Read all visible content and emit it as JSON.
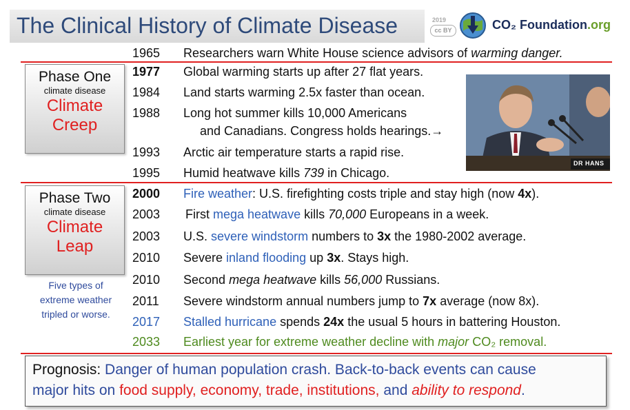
{
  "header": {
    "title": "The Clinical History of Climate Disease",
    "cc_year": "2019",
    "cc_badge": "cc BY",
    "brand_co2": "CO₂ Foundation",
    "brand_org": ".org"
  },
  "phases": [
    {
      "title": "Phase One",
      "subtitle": "climate disease",
      "name_1": "Climate",
      "name_2": "Creep"
    },
    {
      "title": "Phase Two",
      "subtitle": "climate disease",
      "name_1": "Climate",
      "name_2": "Leap"
    }
  ],
  "note": {
    "line_1": "Five types of",
    "line_2": "extreme weather",
    "line_3": "tripled or worse."
  },
  "timeline": {
    "r1965": {
      "year": "1965",
      "t1": "Researchers warn White House science advisors of ",
      "t2": "warming danger."
    },
    "r1977": {
      "year": "1977",
      "t1": "Global warming starts up after 27 flat years."
    },
    "r1984": {
      "year": "1984",
      "t1": "Land starts warming 2.5x faster than ocean."
    },
    "r1988": {
      "year": "1988",
      "t1": "Long hot summer kills 10,000 Americans",
      "t2": "and Canadians. Congress holds hearings.→"
    },
    "r1993": {
      "year": "1993",
      "t1": "Arctic air temperature starts a rapid rise."
    },
    "r1995": {
      "year": "1995",
      "t1": "Humid heatwave kills ",
      "t2": "739",
      "t3": " in Chicago."
    },
    "r2000": {
      "year": "2000",
      "t1": "Fire weather",
      "t2": ": U.S. firefighting costs triple and stay high (now ",
      "t3": "4x",
      "t4": ")."
    },
    "r2003a": {
      "year": "2003",
      "t1": "First ",
      "t2": "mega heatwave",
      "t3": " kills ",
      "t4": "70,000",
      "t5": " Europeans in a week."
    },
    "r2003b": {
      "year": "2003",
      "t1": "U.S. ",
      "t2": "severe windstorm",
      "t3": " numbers to ",
      "t4": "3x",
      "t5": " the 1980-2002 average."
    },
    "r2010a": {
      "year": "2010",
      "t1": "Severe ",
      "t2": "inland flooding",
      "t3": " up ",
      "t4": "3x",
      "t5": ". Stays high."
    },
    "r2010b": {
      "year": "2010",
      "t1": "Second ",
      "t2": "mega heatwave",
      "t3": " kills ",
      "t4": "56,000",
      "t5": " Russians."
    },
    "r2011": {
      "year": "2011",
      "t1": "Severe windstorm annual numbers jump to ",
      "t2": "7x",
      "t3": " average (now 8x)."
    },
    "r2017": {
      "year": "2017",
      "t1": "Stalled hurricane",
      "t2": " spends ",
      "t3": "24x",
      "t4": " the usual 5 hours in battering Houston."
    },
    "r2033": {
      "year": "2033",
      "t1": "Earliest year for extreme weather decline with ",
      "t2": "major",
      "t3": " CO₂ removal."
    }
  },
  "photo": {
    "sign_text": "DR HANS"
  },
  "prognosis": {
    "label": "Prognosis:",
    "l1": " Danger of human population crash. Back-to-back events can cause",
    "l2a": "major hits on ",
    "l2b": "food supply, economy, trade, institutions,",
    "l2c": " and ",
    "l2d": "ability to respond",
    "l2e": "."
  },
  "colors": {
    "accent_red": "#e02020",
    "title_blue": "#2e4a7a",
    "highlight_blue": "#2e60b8",
    "green": "#4e8a1e"
  }
}
